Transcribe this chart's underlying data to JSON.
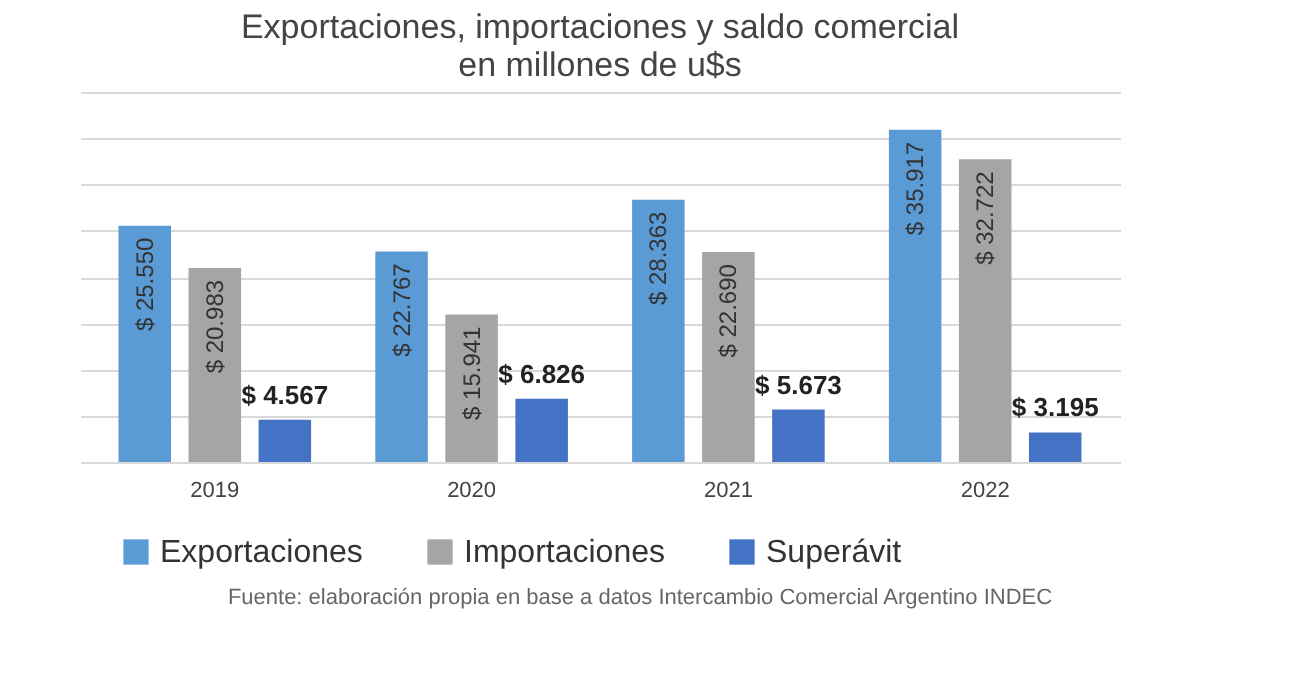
{
  "chart_data": {
    "type": "bar",
    "title": "Exportaciones, importaciones y saldo comercial\nen millones de u$s",
    "categories": [
      "2019",
      "2020",
      "2021",
      "2022"
    ],
    "series": [
      {
        "name": "Exportaciones",
        "color": "#5b9bd5",
        "values": [
          25550,
          22767,
          28363,
          35917
        ],
        "value_labels": [
          "$ 25.550",
          "$ 22.767",
          "$ 28.363",
          "$ 35.917"
        ]
      },
      {
        "name": "Importaciones",
        "color": "#a5a5a5",
        "values": [
          20983,
          15941,
          22690,
          32722
        ],
        "value_labels": [
          "$ 20.983",
          "$ 15.941",
          "$ 22.690",
          "$ 32.722"
        ]
      },
      {
        "name": "Superávit",
        "color": "#4472c4",
        "values": [
          4567,
          6826,
          5673,
          3195
        ],
        "value_labels": [
          "$ 4.567",
          "$ 6.826",
          "$ 5.673",
          "$ 3.195"
        ]
      }
    ],
    "ylim": [
      0,
      40000
    ],
    "yticks": [
      {
        "value": 0,
        "label": null
      },
      {
        "value": 5000,
        "label": null
      },
      {
        "value": 10000,
        "label": null
      },
      {
        "value": 15000,
        "label": null
      },
      {
        "value": 20000,
        "label": null
      },
      {
        "value": 25000,
        "label": null
      },
      {
        "value": 30000,
        "label": null
      },
      {
        "value": 35000,
        "label": null
      },
      {
        "value": 40000,
        "label": null
      }
    ],
    "tick_labels": "x",
    "grid": "y",
    "legend": "bottom",
    "annotations": [
      "Fuente: elaboración propia en base a datos Intercambio Comercial Argentino INDEC"
    ]
  }
}
